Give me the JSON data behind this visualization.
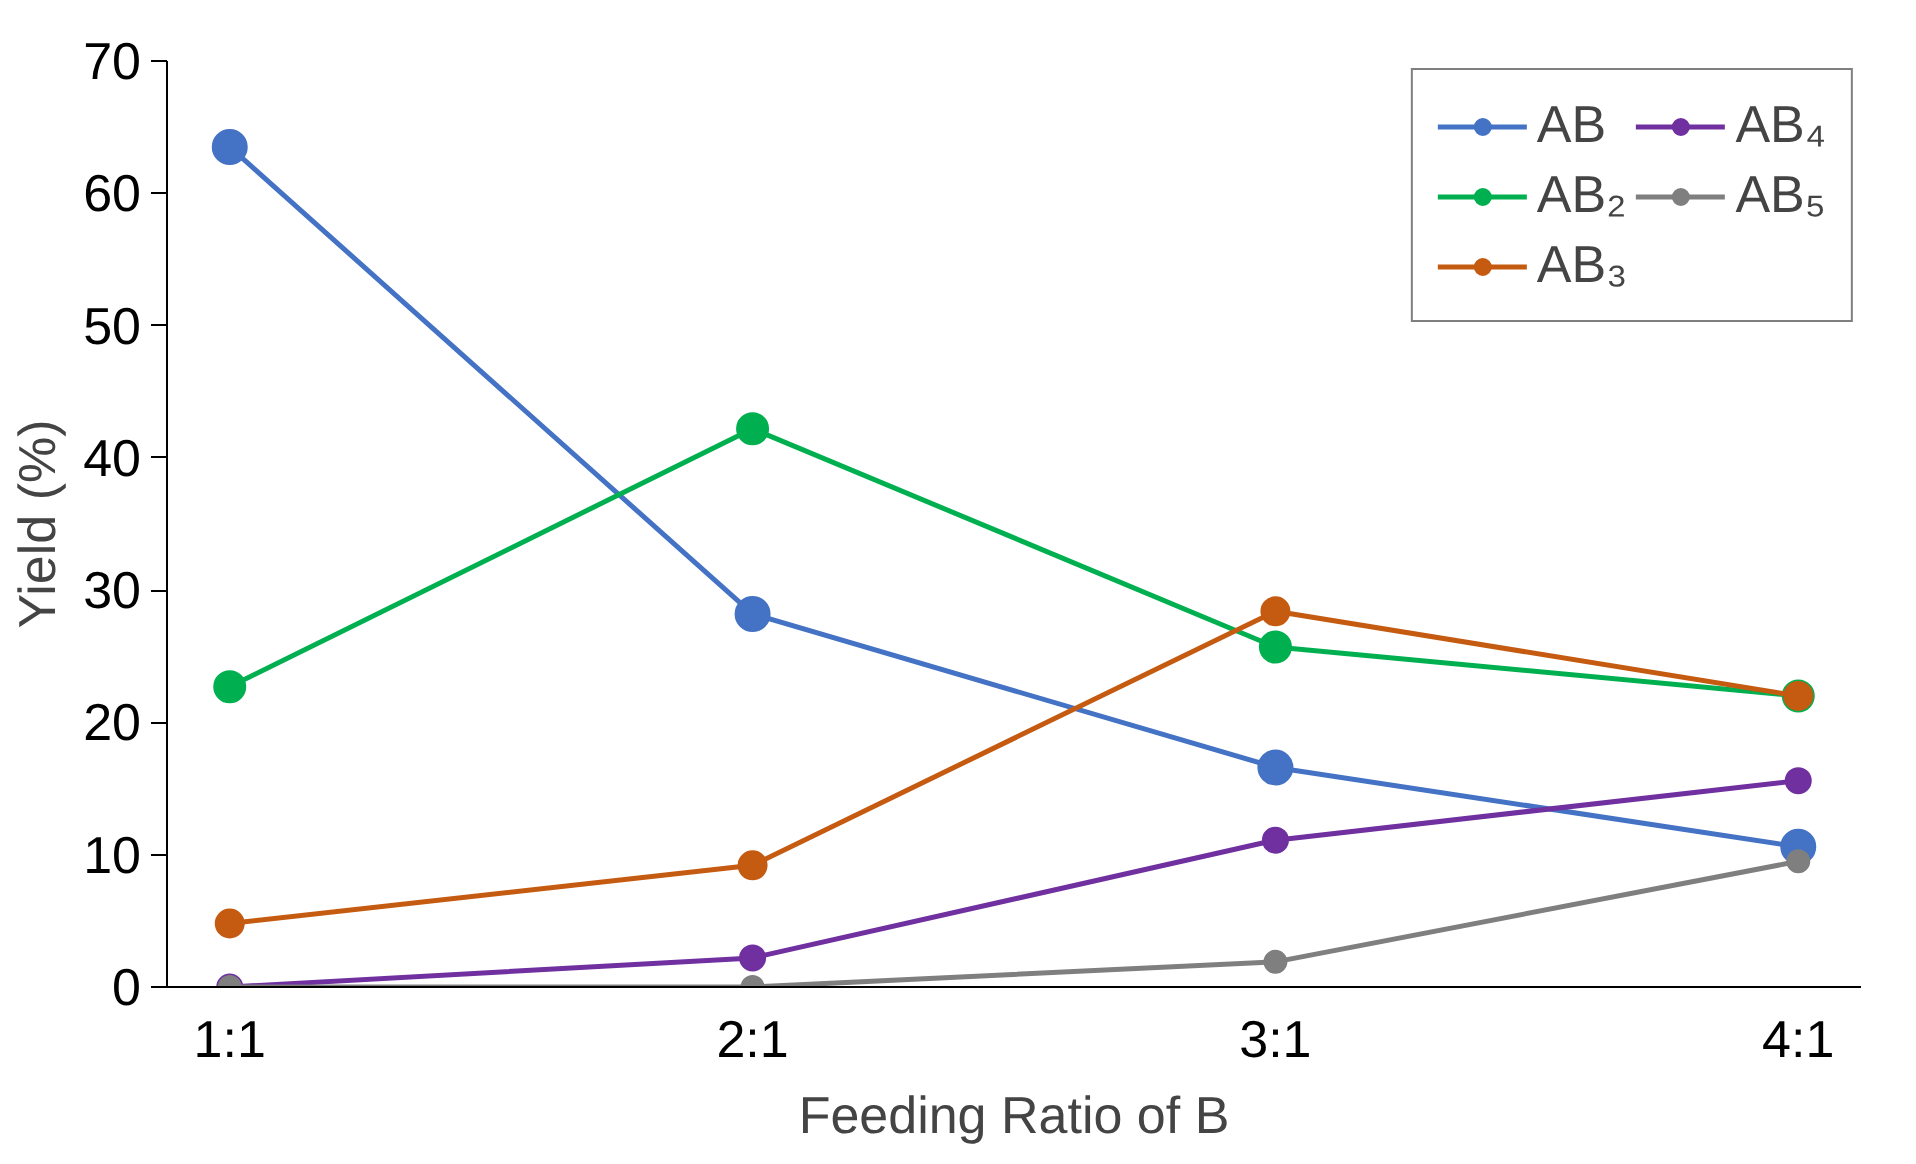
{
  "chart_data": {
    "type": "line",
    "xlabel": "Feeding Ratio of B",
    "ylabel": "Yield (%)",
    "categories": [
      "1:1",
      "2:1",
      "3:1",
      "4:1"
    ],
    "series": [
      {
        "name": "AB",
        "color": "#4472c4",
        "values": [
          63.5,
          28.2,
          16.6,
          10.6
        ]
      },
      {
        "name": "AB₂",
        "color": "#00b050",
        "values": [
          22.7,
          42.2,
          25.7,
          22.0
        ]
      },
      {
        "name": "AB₃",
        "color": "#c55a11",
        "values": [
          4.8,
          9.2,
          28.4,
          22.0
        ]
      },
      {
        "name": "AB₄",
        "color": "#7030a0",
        "values": [
          0,
          2.2,
          11.1,
          15.6
        ]
      },
      {
        "name": "AB₅",
        "color": "#7f7f7f",
        "values": [
          0,
          0,
          1.9,
          9.5
        ]
      }
    ],
    "ylim": [
      0,
      70
    ],
    "yticks": [
      0,
      10,
      20,
      30,
      40,
      50,
      60,
      70
    ],
    "grid": false,
    "legend": "top right",
    "marker": "circle",
    "line_style": "solid"
  }
}
